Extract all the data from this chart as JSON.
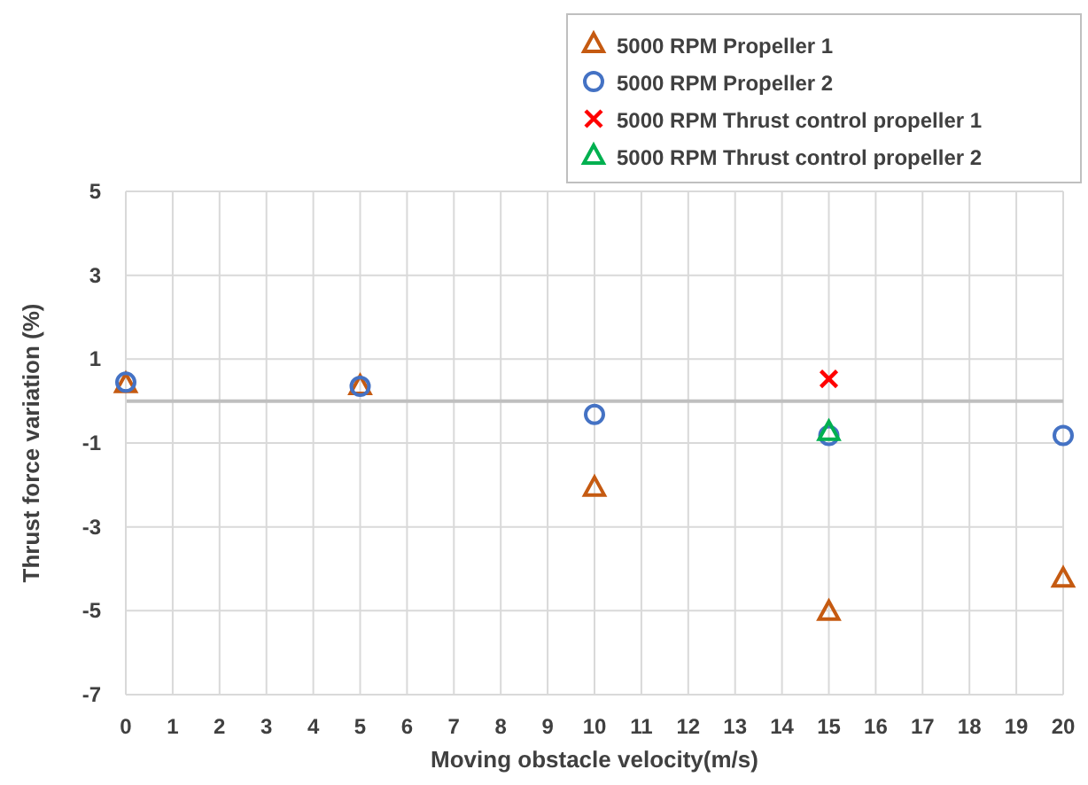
{
  "chart_data": {
    "type": "scatter",
    "xlabel": "Moving obstacle velocity(m/s)",
    "ylabel": "Thrust force variation (%)",
    "xlim": [
      0,
      20
    ],
    "xticks": [
      0,
      1,
      2,
      3,
      4,
      5,
      6,
      7,
      8,
      9,
      10,
      11,
      12,
      13,
      14,
      15,
      16,
      17,
      18,
      19,
      20
    ],
    "ylim": [
      -7,
      5
    ],
    "yticks": [
      -7,
      -5,
      -3,
      -1,
      1,
      3,
      5
    ],
    "grid": true,
    "legend": "top right",
    "series": [
      {
        "name": "5000 RPM Propeller 1",
        "color": "#c55a11",
        "marker": "triangle",
        "x": [
          0,
          5,
          10,
          15,
          20
        ],
        "values": [
          0.4,
          0.35,
          -2.07,
          -5.03,
          -4.24
        ]
      },
      {
        "name": "5000 RPM Propeller 2",
        "color": "#4472c4",
        "marker": "circle",
        "x": [
          0,
          5,
          10,
          15,
          20
        ],
        "values": [
          0.45,
          0.35,
          -0.32,
          -0.82,
          -0.82
        ]
      },
      {
        "name": "5000 RPM Thrust control propeller 1",
        "color": "#ff0000",
        "marker": "cross",
        "x": [
          15
        ],
        "values": [
          0.53
        ]
      },
      {
        "name": "5000 RPM Thrust control propeller 2",
        "color": "#00b050",
        "marker": "triangle",
        "x": [
          15
        ],
        "values": [
          -0.74
        ]
      }
    ]
  }
}
